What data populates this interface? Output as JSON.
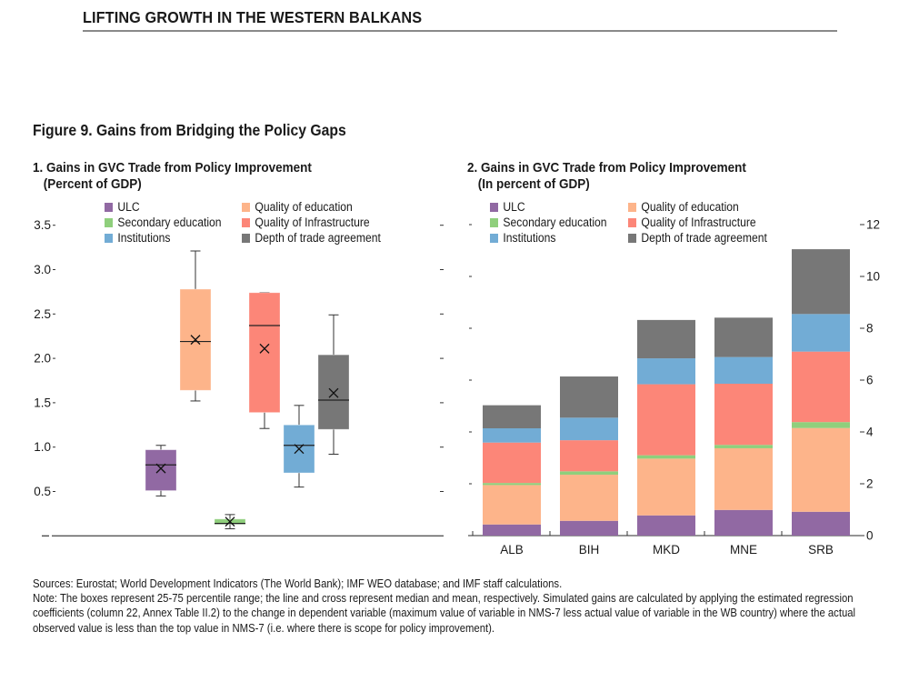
{
  "header": {
    "title": "LIFTING GROWTH IN THE WESTERN BALKANS"
  },
  "figure": {
    "title": "Figure 9. Gains from Bridging the Policy Gaps"
  },
  "colors": {
    "ULC": "#9169a3",
    "Secondary education": "#8fcf7c",
    "Institutions": "#72acd5",
    "Quality of education": "#fdb48a",
    "Quality of Infrastructure": "#fc8678",
    "Depth of trade agreement": "#777777"
  },
  "legend": [
    {
      "label": "ULC",
      "key": "ULC"
    },
    {
      "label": "Secondary education",
      "key": "Secondary education"
    },
    {
      "label": "Institutions",
      "key": "Institutions"
    },
    {
      "label": "Quality of education",
      "key": "Quality of education"
    },
    {
      "label": "Quality of Infrastructure",
      "key": "Quality of Infrastructure"
    },
    {
      "label": "Depth of trade agreement",
      "key": "Depth of trade agreement"
    }
  ],
  "chart_data": [
    {
      "type": "box",
      "title": "1. Gains in GVC Trade from Policy Improvement",
      "subtitle": "(Percent of GDP)",
      "xlabel": "",
      "ylabel": "",
      "ylim": [
        0,
        3.5
      ],
      "yticks": [
        0,
        0.5,
        1.0,
        1.5,
        2.0,
        2.5,
        3.0,
        3.5
      ],
      "ytick_labels": [
        "",
        "0.5",
        "1.0",
        "1.5",
        "2.0",
        "2.5",
        "3.0",
        "3.5"
      ],
      "legend_position": "top",
      "grid": false,
      "series": [
        {
          "name": "ULC",
          "whisker_low": 0.45,
          "q1": 0.51,
          "median": 0.8,
          "mean": 0.76,
          "q3": 0.97,
          "whisker_high": 1.02
        },
        {
          "name": "Quality of education",
          "whisker_low": 1.52,
          "q1": 1.64,
          "median": 2.19,
          "mean": 2.21,
          "q3": 2.78,
          "whisker_high": 3.21
        },
        {
          "name": "Secondary education",
          "whisker_low": 0.08,
          "q1": 0.13,
          "median": 0.14,
          "mean": 0.16,
          "q3": 0.19,
          "whisker_high": 0.24
        },
        {
          "name": "Quality of Infrastructure",
          "whisker_low": 1.21,
          "q1": 1.39,
          "median": 2.37,
          "mean": 2.11,
          "q3": 2.74,
          "whisker_high": 2.74
        },
        {
          "name": "Institutions",
          "whisker_low": 0.55,
          "q1": 0.71,
          "median": 1.02,
          "mean": 0.98,
          "q3": 1.25,
          "whisker_high": 1.47
        },
        {
          "name": "Depth of trade agreement",
          "whisker_low": 0.92,
          "q1": 1.2,
          "median": 1.53,
          "mean": 1.61,
          "q3": 2.04,
          "whisker_high": 2.49
        }
      ]
    },
    {
      "type": "bar",
      "stacked": true,
      "title": "2. Gains in GVC Trade from Policy Improvement",
      "subtitle": "(In percent of GDP)",
      "xlabel": "",
      "ylabel": "",
      "categories": [
        "ALB",
        "BIH",
        "MKD",
        "MNE",
        "SRB"
      ],
      "ylim": [
        0,
        12
      ],
      "yticks": [
        0,
        2,
        4,
        6,
        8,
        10,
        12
      ],
      "ytick_labels": [
        "0",
        "2",
        "4",
        "6",
        "8",
        "10",
        "12"
      ],
      "y_axis_side": "right",
      "legend_position": "top",
      "grid": false,
      "series": [
        {
          "name": "ULC",
          "values": [
            0.43,
            0.57,
            0.78,
            0.99,
            0.92
          ]
        },
        {
          "name": "Quality of education",
          "values": [
            1.52,
            1.78,
            2.19,
            2.38,
            3.23
          ]
        },
        {
          "name": "Secondary education",
          "values": [
            0.08,
            0.13,
            0.13,
            0.13,
            0.23
          ]
        },
        {
          "name": "Quality of Infrastructure",
          "values": [
            1.56,
            1.2,
            2.74,
            2.36,
            2.72
          ]
        },
        {
          "name": "Institutions",
          "values": [
            0.55,
            0.87,
            1.0,
            1.03,
            1.45
          ]
        },
        {
          "name": "Depth of trade agreement",
          "values": [
            0.89,
            1.59,
            1.48,
            1.52,
            2.5
          ]
        }
      ]
    }
  ],
  "notes": {
    "sources": "Sources: Eurostat; World Development Indicators (The World Bank); IMF WEO database; and IMF staff calculations.",
    "note": "Note: The boxes represent 25-75 percentile range; the line and cross represent median and mean, respectively. Simulated gains are calculated by applying the estimated regression coefficients (column 22, Annex Table II.2) to the change in dependent variable (maximum value of variable in NMS-7 less actual value of variable in the WB country) where the actual observed value is less than the top value in NMS-7 (i.e. where there is scope for policy improvement)."
  }
}
